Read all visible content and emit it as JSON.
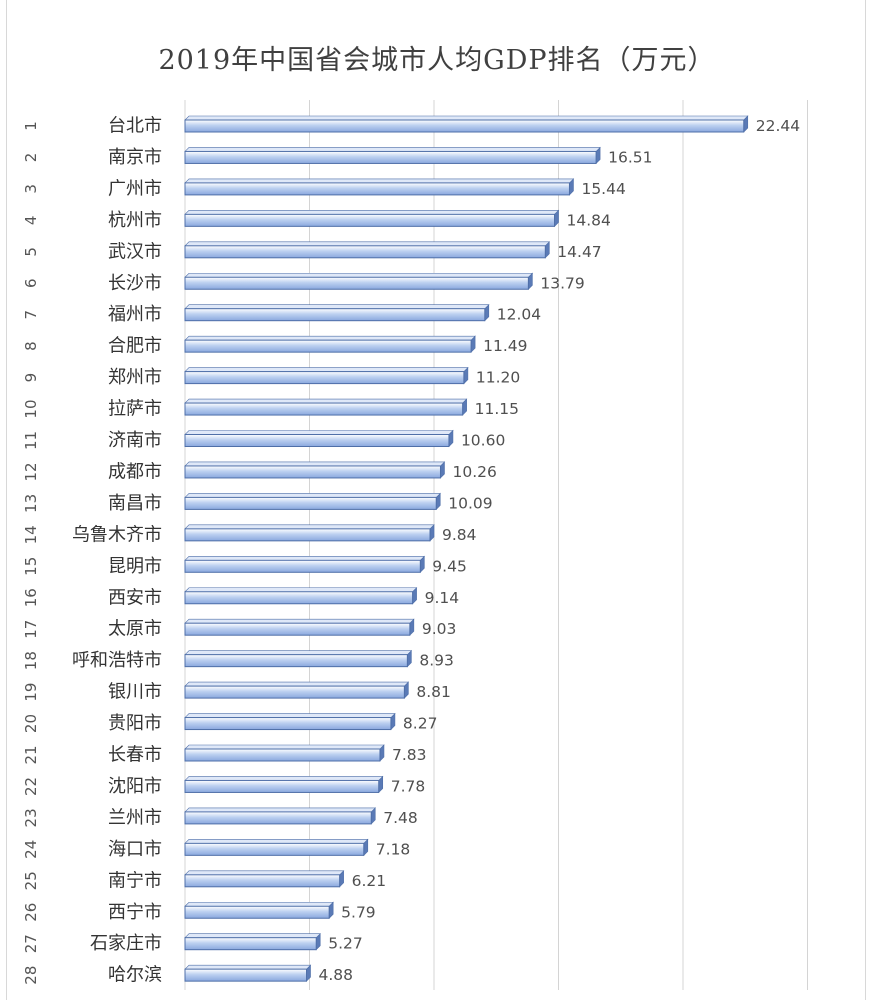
{
  "colors": {
    "bar_top": "#ffffff",
    "bar_mid": "#bcd0f0",
    "bar_bottom": "#8aa8de",
    "bar_edge": "#4f6fa8",
    "bar_depth": "#5a7ab6"
  },
  "chart_data": {
    "type": "bar",
    "orientation": "horizontal",
    "title": "2019年中国省会城市人均GDP排名（万元）",
    "xlim": [
      0,
      25
    ],
    "x_gridlines": [
      0,
      5,
      10,
      15,
      20,
      25
    ],
    "grid": true,
    "legend": "none",
    "ranks": [
      "1",
      "2",
      "3",
      "4",
      "5",
      "6",
      "7",
      "8",
      "9",
      "10",
      "11",
      "12",
      "13",
      "14",
      "15",
      "16",
      "17",
      "18",
      "19",
      "20",
      "21",
      "22",
      "23",
      "24",
      "25",
      "26",
      "27",
      "28"
    ],
    "categories": [
      "台北市",
      "南京市",
      "广州市",
      "杭州市",
      "武汉市",
      "长沙市",
      "福州市",
      "合肥市",
      "郑州市",
      "拉萨市",
      "济南市",
      "成都市",
      "南昌市",
      "乌鲁木齐市",
      "昆明市",
      "西安市",
      "太原市",
      "呼和浩特市",
      "银川市",
      "贵阳市",
      "长春市",
      "沈阳市",
      "兰州市",
      "海口市",
      "南宁市",
      "西宁市",
      "石家庄市",
      "哈尔滨"
    ],
    "values": [
      22.44,
      16.51,
      15.44,
      14.84,
      14.47,
      13.79,
      12.04,
      11.49,
      11.2,
      11.15,
      10.6,
      10.26,
      10.09,
      9.84,
      9.45,
      9.14,
      9.03,
      8.93,
      8.81,
      8.27,
      7.83,
      7.78,
      7.48,
      7.18,
      6.21,
      5.79,
      5.27,
      4.88
    ],
    "value_labels": [
      "22.44",
      "16.51",
      "15.44",
      "14.84",
      "14.47",
      "13.79",
      "12.04",
      "11.49",
      "11.20",
      "11.15",
      "10.60",
      "10.26",
      "10.09",
      "9.84",
      "9.45",
      "9.14",
      "9.03",
      "8.93",
      "8.81",
      "8.27",
      "7.83",
      "7.78",
      "7.48",
      "7.18",
      "6.21",
      "5.79",
      "5.27",
      "4.88"
    ]
  }
}
